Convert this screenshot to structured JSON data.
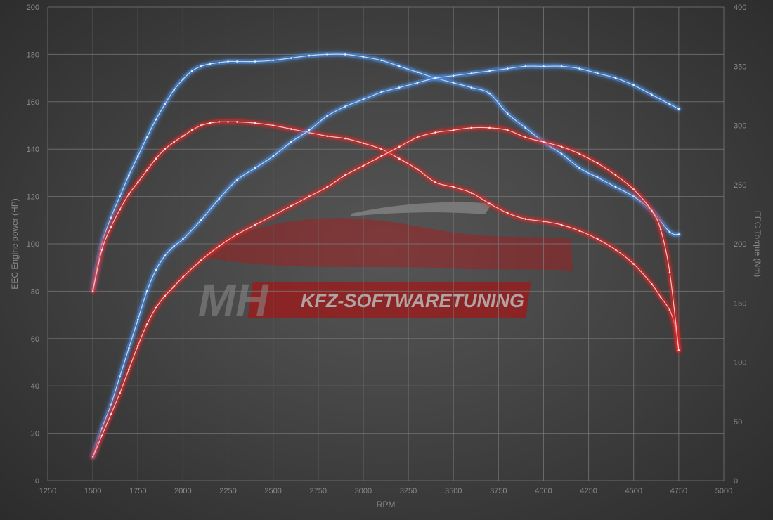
{
  "chart_data": {
    "type": "line",
    "xlabel": "RPM",
    "ylabel_left": "EEC Engine power (HP)",
    "ylabel_right": "EEC Torque (Nm)",
    "x_ticks": [
      1250,
      1500,
      1750,
      2000,
      2250,
      2500,
      2750,
      3000,
      3250,
      3500,
      3750,
      4000,
      4250,
      4500,
      4750,
      5000
    ],
    "y_left_ticks": [
      0,
      20,
      40,
      60,
      80,
      100,
      120,
      140,
      160,
      180,
      200
    ],
    "y_right_ticks": [
      0,
      50,
      100,
      150,
      200,
      250,
      300,
      350,
      400
    ],
    "xlim": [
      1250,
      5000
    ],
    "ylim_left": [
      0,
      200
    ],
    "ylim_right": [
      0,
      400
    ],
    "grid": true,
    "colors": {
      "tuned": "#4a90e8",
      "stock": "#e02424"
    },
    "series": [
      {
        "axis": "right",
        "color": "#4a90e8",
        "x": [
          1500,
          1550,
          1600,
          1650,
          1700,
          1750,
          1800,
          1850,
          1900,
          1950,
          2000,
          2050,
          2100,
          2150,
          2200,
          2250,
          2300,
          2400,
          2500,
          2600,
          2700,
          2800,
          2900,
          3000,
          3100,
          3200,
          3300,
          3400,
          3500,
          3600,
          3700,
          3800,
          3900,
          4000,
          4100,
          4200,
          4300,
          4400,
          4500,
          4600,
          4700,
          4750
        ],
        "values": [
          162,
          200,
          222,
          240,
          258,
          274,
          290,
          305,
          318,
          330,
          339,
          346,
          350,
          352,
          353,
          354,
          354,
          354,
          355,
          357,
          359,
          360,
          360,
          358,
          355,
          350,
          345,
          340,
          336,
          332,
          327,
          310,
          298,
          286,
          276,
          264,
          256,
          248,
          240,
          228,
          210,
          208
        ]
      },
      {
        "axis": "right",
        "color": "#e02424",
        "x": [
          1500,
          1550,
          1600,
          1650,
          1700,
          1750,
          1800,
          1850,
          1900,
          1950,
          2000,
          2050,
          2100,
          2150,
          2200,
          2250,
          2300,
          2400,
          2500,
          2600,
          2700,
          2800,
          2900,
          3000,
          3100,
          3200,
          3300,
          3400,
          3500,
          3600,
          3700,
          3800,
          3900,
          4000,
          4100,
          4200,
          4300,
          4400,
          4500,
          4600,
          4650,
          4700,
          4730,
          4750
        ],
        "values": [
          160,
          195,
          214,
          229,
          242,
          252,
          262,
          272,
          280,
          286,
          291,
          296,
          300,
          302,
          303,
          303,
          303,
          302,
          300,
          297,
          294,
          291,
          289,
          285,
          280,
          272,
          263,
          252,
          248,
          243,
          234,
          226,
          221,
          219,
          216,
          211,
          204,
          195,
          183,
          166,
          155,
          144,
          130,
          110
        ]
      },
      {
        "axis": "left",
        "color": "#4a90e8",
        "x": [
          1500,
          1550,
          1600,
          1650,
          1700,
          1750,
          1800,
          1850,
          1900,
          1950,
          2000,
          2100,
          2200,
          2300,
          2400,
          2500,
          2600,
          2700,
          2800,
          2900,
          3000,
          3100,
          3200,
          3300,
          3400,
          3500,
          3600,
          3700,
          3800,
          3900,
          4000,
          4100,
          4200,
          4300,
          4400,
          4500,
          4600,
          4700,
          4750
        ],
        "values": [
          10,
          22,
          32,
          44,
          56,
          68,
          80,
          89,
          95,
          99,
          102,
          110,
          119,
          127,
          132,
          137,
          143,
          148,
          154,
          158,
          161,
          164,
          166,
          168,
          170,
          171,
          172,
          173,
          174,
          175,
          175,
          175,
          174,
          172,
          170,
          167,
          163,
          159,
          157
        ]
      },
      {
        "axis": "left",
        "color": "#e02424",
        "x": [
          1500,
          1550,
          1600,
          1650,
          1700,
          1750,
          1800,
          1850,
          1900,
          1950,
          2000,
          2100,
          2200,
          2300,
          2400,
          2500,
          2600,
          2700,
          2800,
          2900,
          3000,
          3100,
          3200,
          3300,
          3400,
          3500,
          3600,
          3700,
          3800,
          3900,
          4000,
          4100,
          4200,
          4300,
          4400,
          4500,
          4600,
          4650,
          4700,
          4750
        ],
        "values": [
          10,
          19,
          28,
          37,
          47,
          57,
          66,
          73,
          78,
          82,
          86,
          93,
          99,
          104,
          108,
          112,
          116,
          120,
          124,
          129,
          133,
          137,
          141,
          145,
          147,
          148,
          149,
          149,
          148,
          145,
          143,
          141,
          138,
          134,
          129,
          123,
          114,
          106,
          88,
          55
        ]
      }
    ]
  }
}
